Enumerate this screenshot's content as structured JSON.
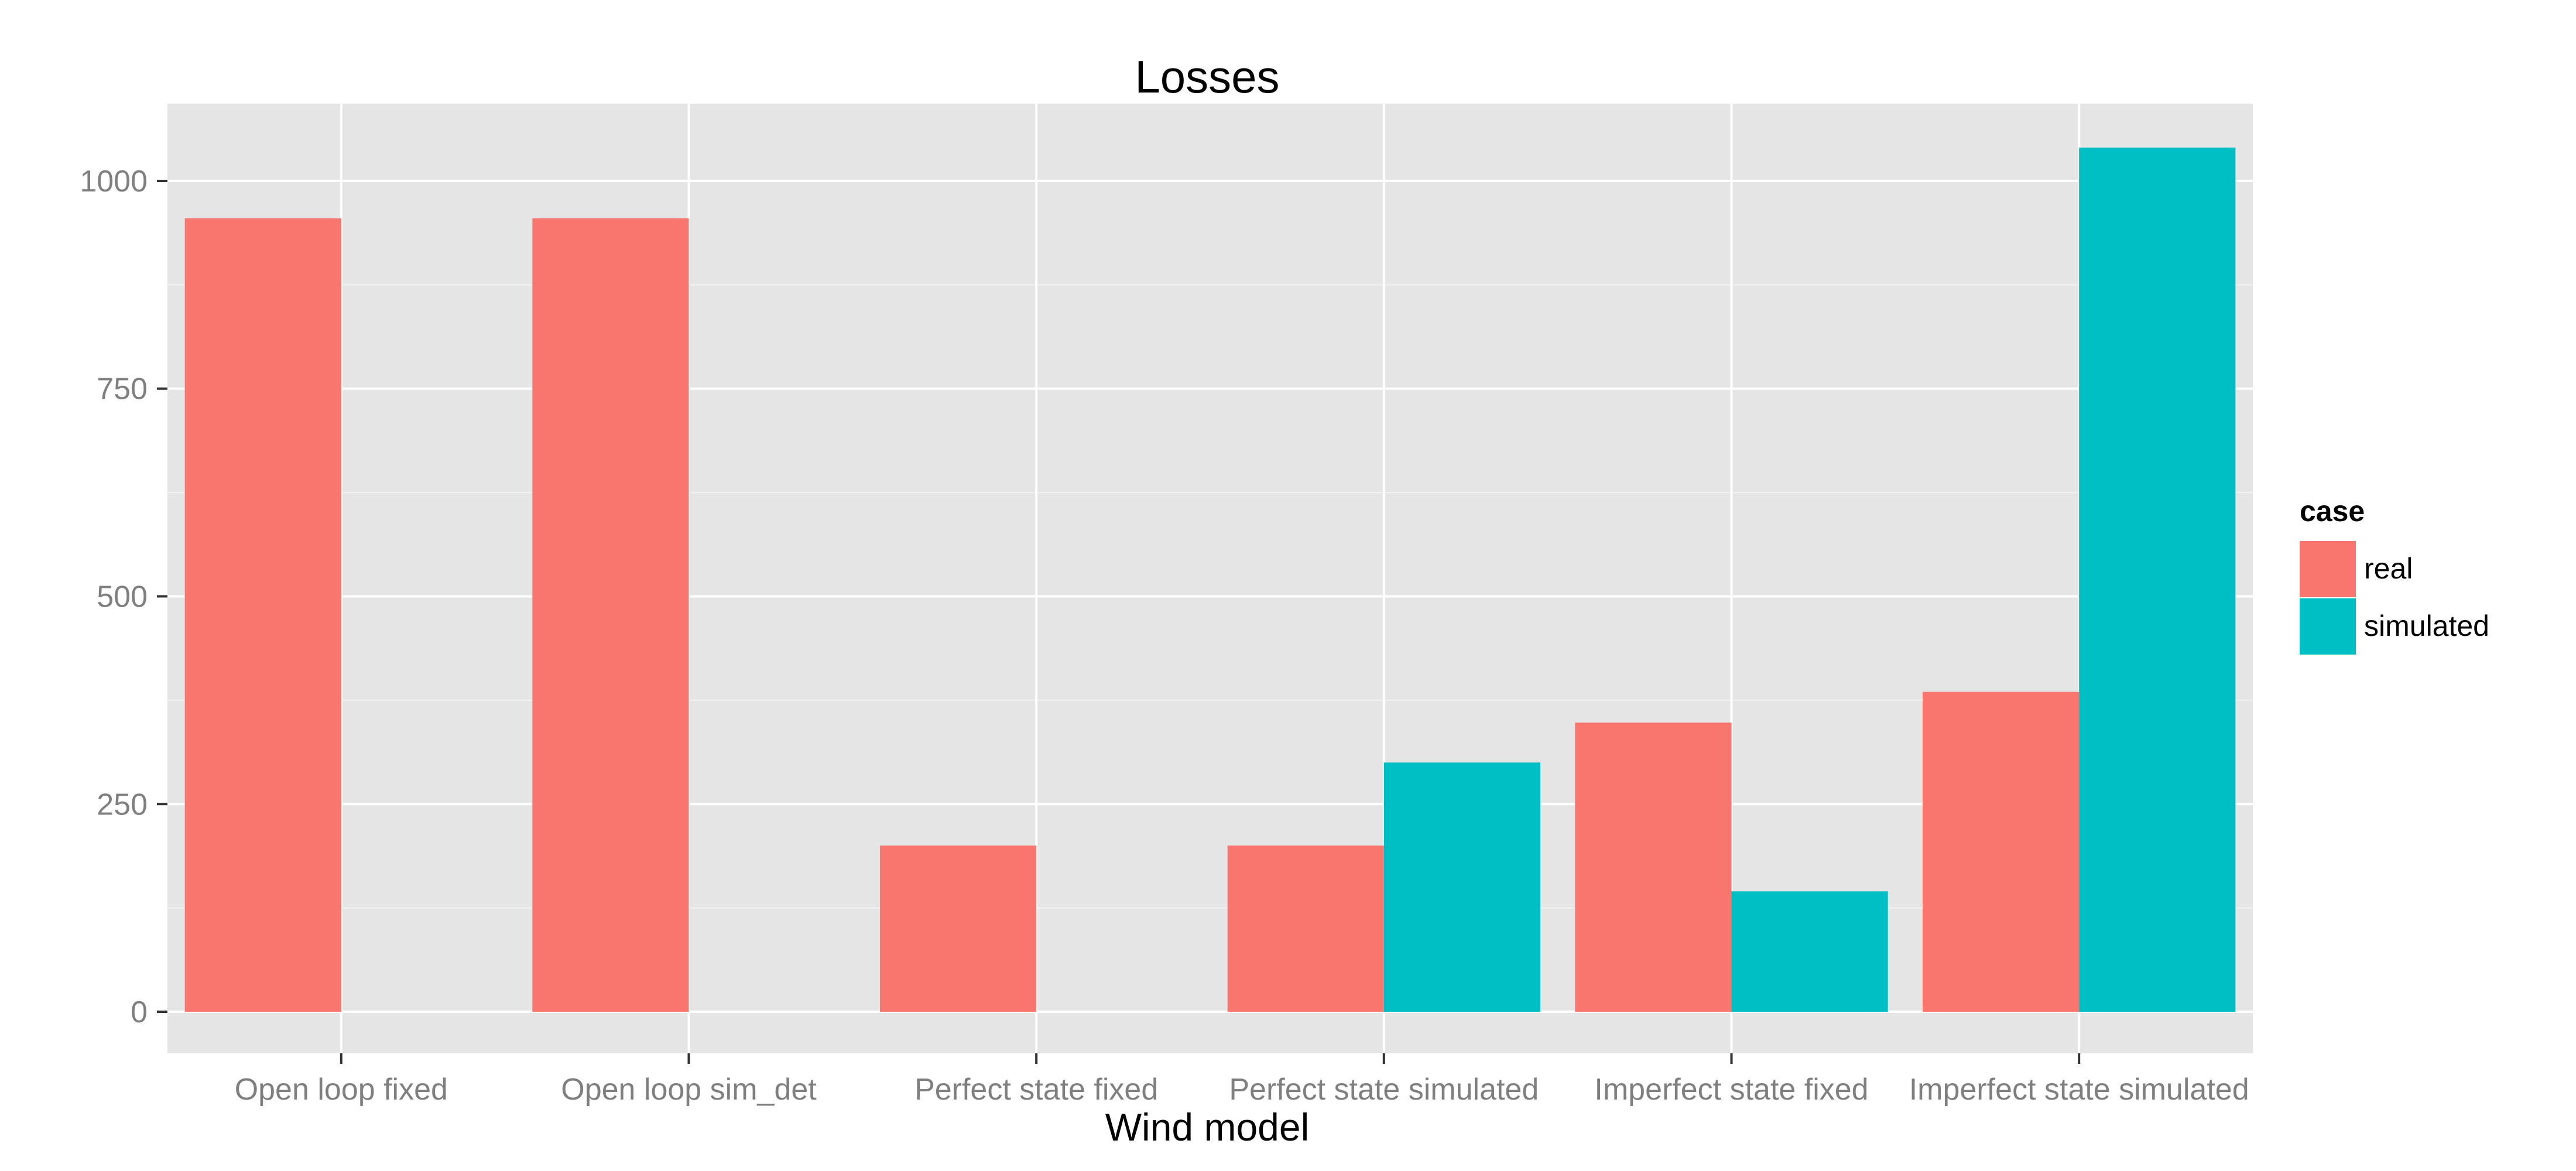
{
  "chart_data": {
    "type": "bar",
    "title": "Losses",
    "xlabel": "Wind model",
    "ylabel": "",
    "categories": [
      "Open loop fixed",
      "Open loop sim_det",
      "Perfect state fixed",
      "Perfect state simulated",
      "Imperfect state fixed",
      "Imperfect state simulated"
    ],
    "series": [
      {
        "name": "real",
        "color": "#F8766D",
        "values": [
          955,
          955,
          200,
          200,
          348,
          385
        ]
      },
      {
        "name": "simulated",
        "color": "#00BFC4",
        "values": [
          0,
          0,
          0,
          300,
          145,
          1040
        ]
      }
    ],
    "ylim": [
      -50,
      1093
    ],
    "yticks": [
      0,
      250,
      500,
      750,
      1000
    ],
    "ytick_labels": [
      "0",
      "250",
      "500",
      "750",
      "1000"
    ],
    "grid": true,
    "legend": {
      "title": "case",
      "position": "right"
    },
    "colors": {
      "panel_bg": "#E5E5E5",
      "grid_major": "#FFFFFF",
      "grid_minor": "#F2F2F2",
      "tick_text": "#7F7F7F"
    }
  }
}
